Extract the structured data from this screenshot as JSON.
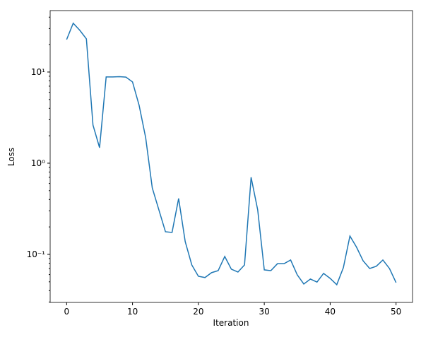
{
  "chart_data": {
    "type": "line",
    "xlabel": "Iteration",
    "ylabel": "Loss",
    "log_y": true,
    "x": [
      0,
      1,
      2,
      3,
      4,
      5,
      6,
      7,
      8,
      9,
      10,
      11,
      12,
      13,
      14,
      15,
      16,
      17,
      18,
      19,
      20,
      21,
      22,
      23,
      24,
      25,
      26,
      27,
      28,
      29,
      30,
      31,
      32,
      33,
      34,
      35,
      36,
      37,
      38,
      39,
      40,
      41,
      42,
      43,
      44,
      45,
      46,
      47,
      48,
      49,
      50
    ],
    "series": [
      {
        "name": "Loss",
        "color": "#1f77b4",
        "values": [
          22.7,
          34.3,
          28.7,
          23.1,
          2.62,
          1.48,
          8.83,
          8.83,
          8.9,
          8.8,
          7.79,
          4.32,
          1.9,
          0.535,
          0.308,
          0.177,
          0.174,
          0.41,
          0.138,
          0.0765,
          0.0575,
          0.0557,
          0.063,
          0.0663,
          0.0948,
          0.0688,
          0.064,
          0.0765,
          0.7,
          0.308,
          0.0676,
          0.0663,
          0.079,
          0.079,
          0.0867,
          0.0597,
          0.0473,
          0.0536,
          0.0497,
          0.0618,
          0.0545,
          0.0465,
          0.0714,
          0.159,
          0.12,
          0.085,
          0.07,
          0.074,
          0.0867,
          0.07,
          0.049
        ]
      }
    ],
    "xlim": [
      -2.5,
      52.5
    ],
    "xticks": [
      0,
      10,
      20,
      30,
      40,
      50
    ],
    "ylim": [
      0.0297,
      47.2
    ],
    "yticks": [
      {
        "value": 0.1,
        "label": "10⁻¹"
      },
      {
        "value": 1,
        "label": "10⁰"
      },
      {
        "value": 10,
        "label": "10¹"
      }
    ]
  }
}
